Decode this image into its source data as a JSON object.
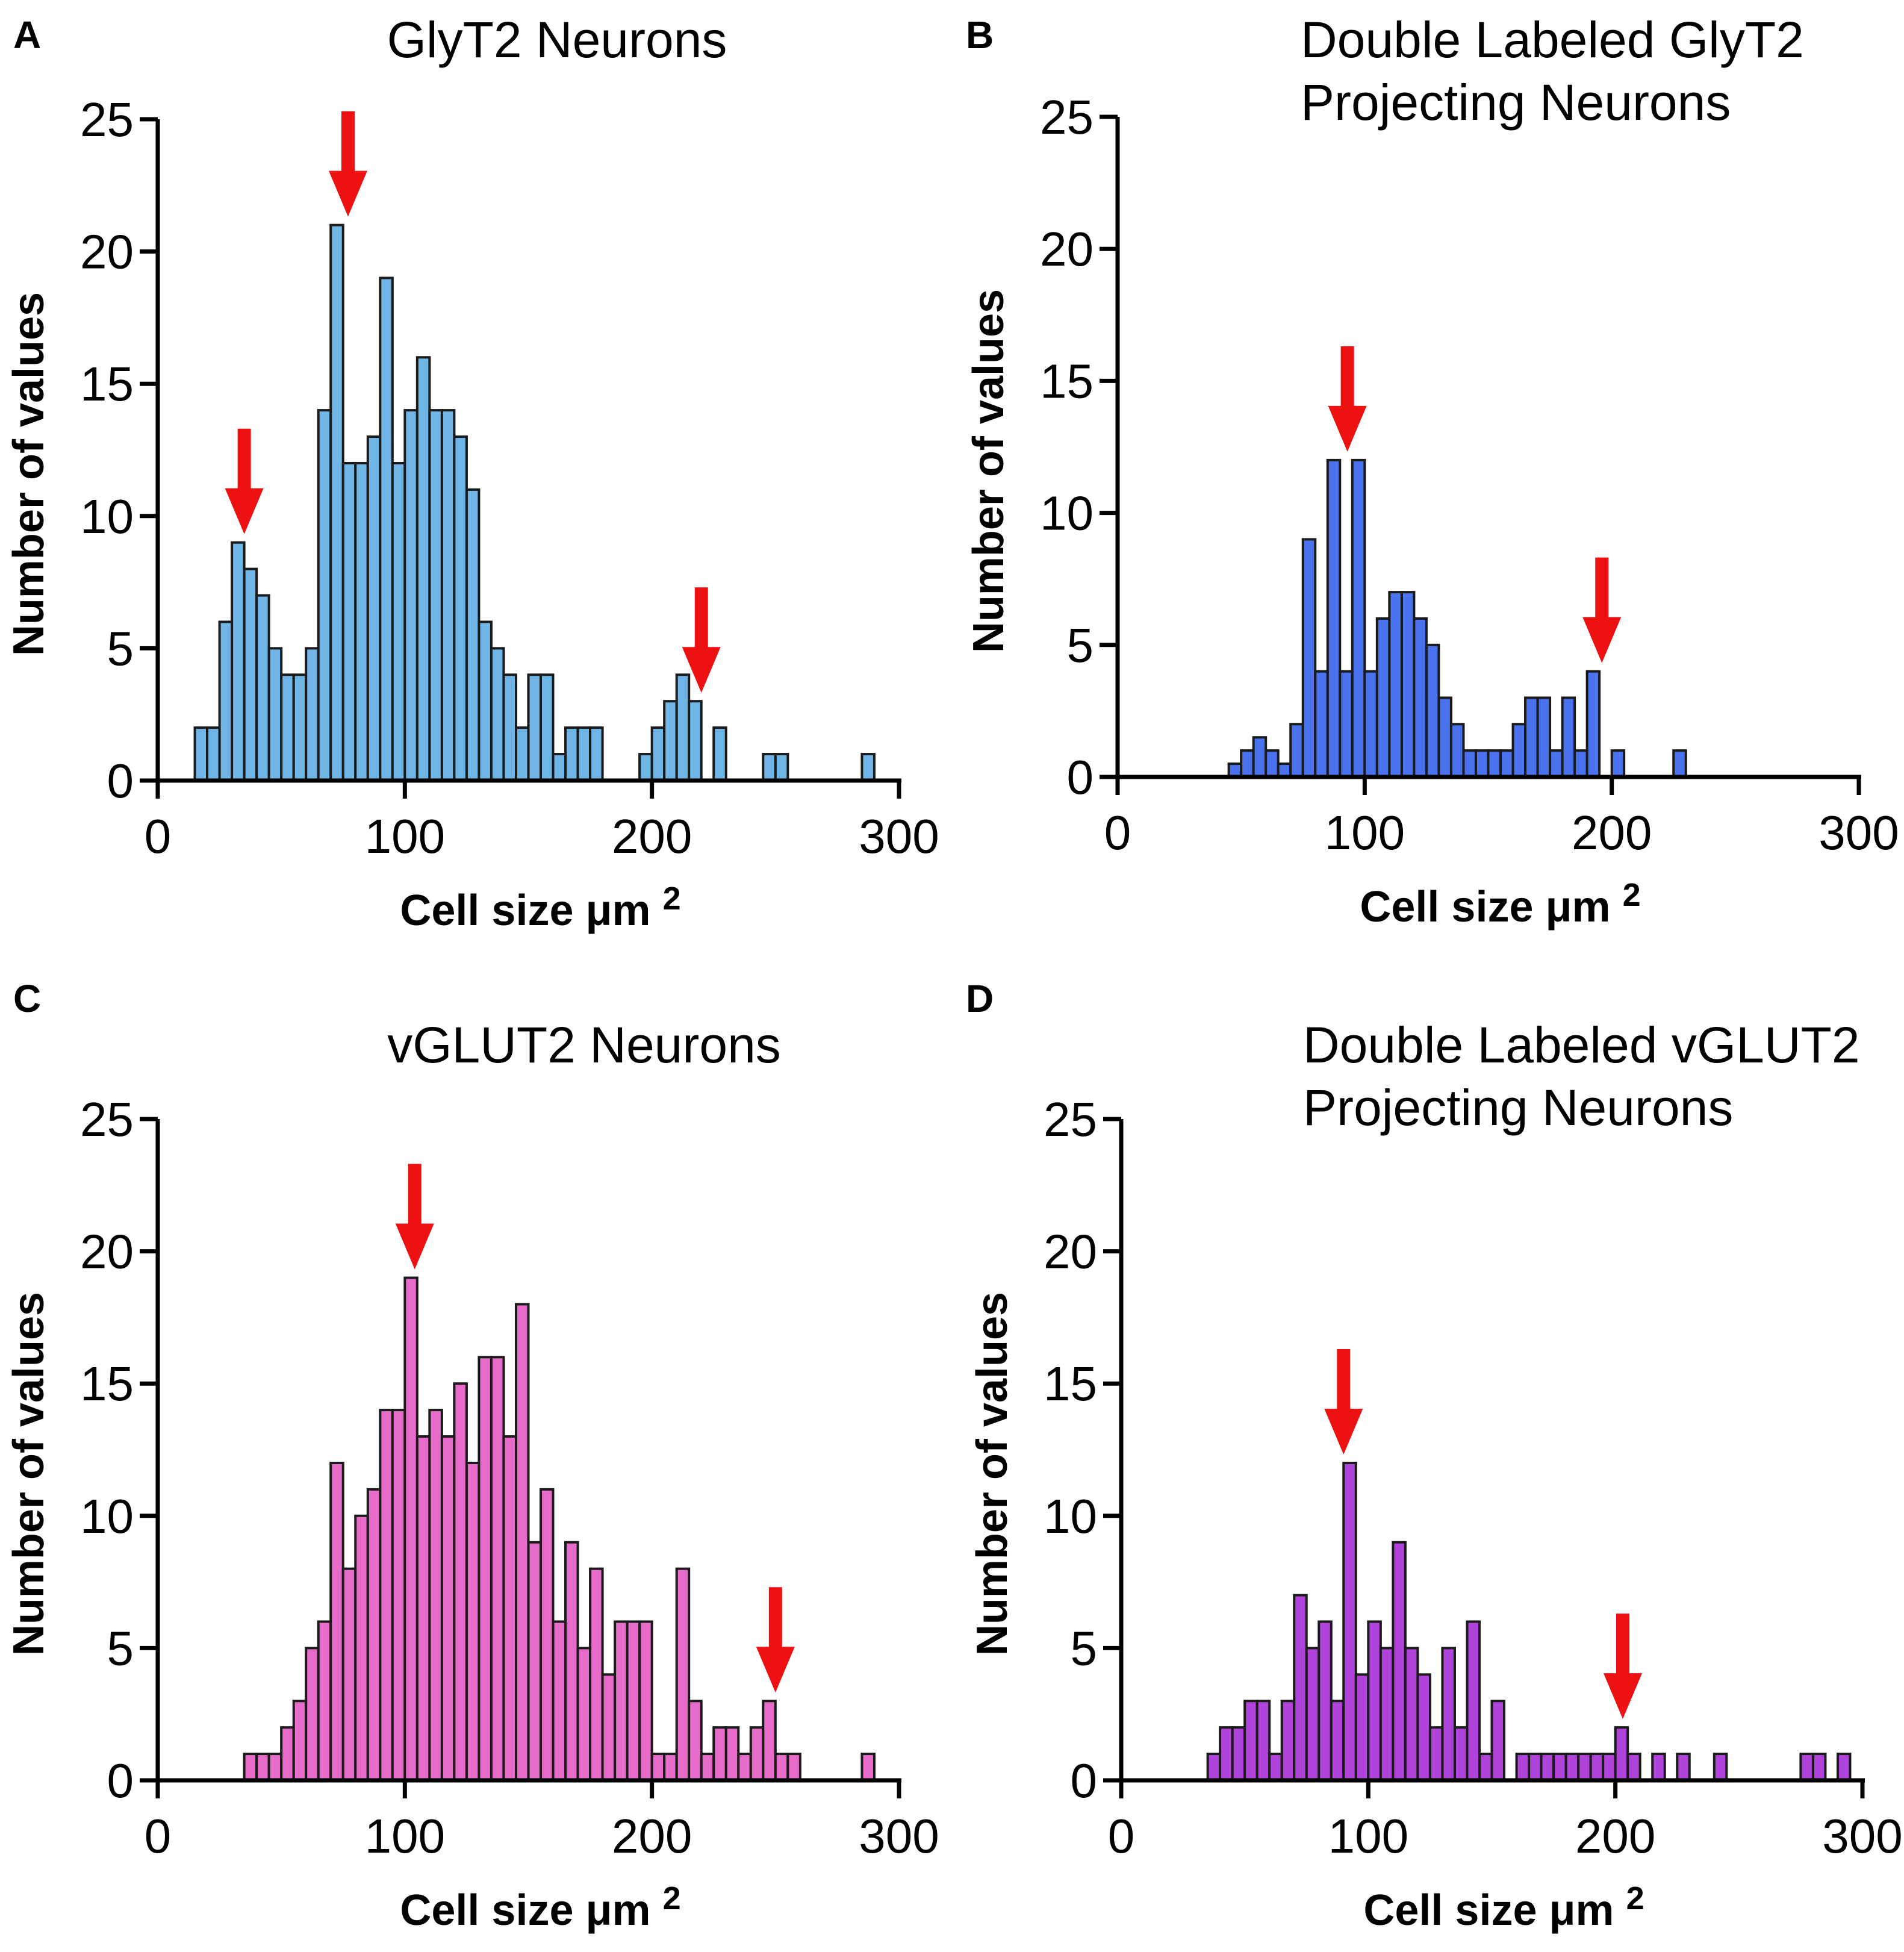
{
  "chart_data": [
    {
      "panel": "A",
      "type": "bar",
      "title": [
        "GlyT2 Neurons"
      ],
      "xlabel": "Cell size μm",
      "xlabel_sup": "2",
      "ylabel": "Number of values",
      "xlim": [
        0,
        300
      ],
      "ylim": [
        0,
        25
      ],
      "xticks": [
        0,
        100,
        200,
        300
      ],
      "yticks": [
        0,
        5,
        10,
        15,
        20,
        25
      ],
      "color": "#6FB5E6",
      "bin_width": 5,
      "bins": [
        {
          "x": 15,
          "y": 2
        },
        {
          "x": 20,
          "y": 2
        },
        {
          "x": 25,
          "y": 6
        },
        {
          "x": 30,
          "y": 9
        },
        {
          "x": 35,
          "y": 8
        },
        {
          "x": 40,
          "y": 7
        },
        {
          "x": 45,
          "y": 5
        },
        {
          "x": 50,
          "y": 4
        },
        {
          "x": 55,
          "y": 4
        },
        {
          "x": 60,
          "y": 5
        },
        {
          "x": 65,
          "y": 14
        },
        {
          "x": 70,
          "y": 21
        },
        {
          "x": 75,
          "y": 12
        },
        {
          "x": 80,
          "y": 12
        },
        {
          "x": 85,
          "y": 13
        },
        {
          "x": 90,
          "y": 19
        },
        {
          "x": 95,
          "y": 12
        },
        {
          "x": 100,
          "y": 14
        },
        {
          "x": 105,
          "y": 16
        },
        {
          "x": 110,
          "y": 14
        },
        {
          "x": 115,
          "y": 14
        },
        {
          "x": 120,
          "y": 13
        },
        {
          "x": 125,
          "y": 11
        },
        {
          "x": 130,
          "y": 6
        },
        {
          "x": 135,
          "y": 5
        },
        {
          "x": 140,
          "y": 4
        },
        {
          "x": 145,
          "y": 2
        },
        {
          "x": 150,
          "y": 4
        },
        {
          "x": 155,
          "y": 4
        },
        {
          "x": 160,
          "y": 1
        },
        {
          "x": 165,
          "y": 2
        },
        {
          "x": 170,
          "y": 2
        },
        {
          "x": 175,
          "y": 2
        },
        {
          "x": 195,
          "y": 1
        },
        {
          "x": 200,
          "y": 2
        },
        {
          "x": 205,
          "y": 3
        },
        {
          "x": 210,
          "y": 4
        },
        {
          "x": 215,
          "y": 3
        },
        {
          "x": 225,
          "y": 2
        },
        {
          "x": 245,
          "y": 1
        },
        {
          "x": 250,
          "y": 1
        },
        {
          "x": 285,
          "y": 1
        }
      ],
      "arrows": [
        35,
        77,
        220
      ]
    },
    {
      "panel": "B",
      "type": "bar",
      "title": [
        "Double Labeled GlyT2",
        "Projecting Neurons"
      ],
      "xlabel": "Cell size μm",
      "xlabel_sup": "2",
      "ylabel": "Number of values",
      "xlim": [
        0,
        300
      ],
      "ylim": [
        0,
        25
      ],
      "xticks": [
        0,
        100,
        200,
        300
      ],
      "yticks": [
        0,
        5,
        10,
        15,
        20,
        25
      ],
      "color": "#4A72EE",
      "bin_width": 5,
      "bins": [
        {
          "x": 45,
          "y": 0.5
        },
        {
          "x": 50,
          "y": 1
        },
        {
          "x": 55,
          "y": 1.5
        },
        {
          "x": 60,
          "y": 1
        },
        {
          "x": 65,
          "y": 0.5
        },
        {
          "x": 70,
          "y": 2
        },
        {
          "x": 75,
          "y": 9
        },
        {
          "x": 80,
          "y": 4
        },
        {
          "x": 85,
          "y": 12
        },
        {
          "x": 90,
          "y": 4
        },
        {
          "x": 95,
          "y": 12
        },
        {
          "x": 100,
          "y": 4
        },
        {
          "x": 105,
          "y": 6
        },
        {
          "x": 110,
          "y": 7
        },
        {
          "x": 115,
          "y": 7
        },
        {
          "x": 120,
          "y": 6
        },
        {
          "x": 125,
          "y": 5
        },
        {
          "x": 130,
          "y": 3
        },
        {
          "x": 135,
          "y": 2
        },
        {
          "x": 140,
          "y": 1
        },
        {
          "x": 145,
          "y": 1
        },
        {
          "x": 150,
          "y": 1
        },
        {
          "x": 155,
          "y": 1
        },
        {
          "x": 160,
          "y": 2
        },
        {
          "x": 165,
          "y": 3
        },
        {
          "x": 170,
          "y": 3
        },
        {
          "x": 175,
          "y": 1
        },
        {
          "x": 180,
          "y": 3
        },
        {
          "x": 185,
          "y": 1
        },
        {
          "x": 190,
          "y": 4
        },
        {
          "x": 200,
          "y": 1
        },
        {
          "x": 225,
          "y": 1
        }
      ],
      "arrows": [
        93,
        196
      ]
    },
    {
      "panel": "C",
      "type": "bar",
      "title": [
        "vGLUT2 Neurons"
      ],
      "xlabel": "Cell size μm",
      "xlabel_sup": "2",
      "ylabel": "Number of values",
      "xlim": [
        0,
        300
      ],
      "ylim": [
        0,
        25
      ],
      "xticks": [
        0,
        100,
        200,
        300
      ],
      "yticks": [
        0,
        5,
        10,
        15,
        20,
        25
      ],
      "color": "#E76BC8",
      "bin_width": 5,
      "bins": [
        {
          "x": 35,
          "y": 1
        },
        {
          "x": 40,
          "y": 1
        },
        {
          "x": 45,
          "y": 1
        },
        {
          "x": 50,
          "y": 2
        },
        {
          "x": 55,
          "y": 3
        },
        {
          "x": 60,
          "y": 5
        },
        {
          "x": 65,
          "y": 6
        },
        {
          "x": 70,
          "y": 12
        },
        {
          "x": 75,
          "y": 8
        },
        {
          "x": 80,
          "y": 10
        },
        {
          "x": 85,
          "y": 11
        },
        {
          "x": 90,
          "y": 14
        },
        {
          "x": 95,
          "y": 14
        },
        {
          "x": 100,
          "y": 19
        },
        {
          "x": 105,
          "y": 13
        },
        {
          "x": 110,
          "y": 14
        },
        {
          "x": 115,
          "y": 13
        },
        {
          "x": 120,
          "y": 15
        },
        {
          "x": 125,
          "y": 12
        },
        {
          "x": 130,
          "y": 16
        },
        {
          "x": 135,
          "y": 16
        },
        {
          "x": 140,
          "y": 13
        },
        {
          "x": 145,
          "y": 18
        },
        {
          "x": 150,
          "y": 9
        },
        {
          "x": 155,
          "y": 11
        },
        {
          "x": 160,
          "y": 6
        },
        {
          "x": 165,
          "y": 9
        },
        {
          "x": 170,
          "y": 5
        },
        {
          "x": 175,
          "y": 8
        },
        {
          "x": 180,
          "y": 4
        },
        {
          "x": 185,
          "y": 6
        },
        {
          "x": 190,
          "y": 6
        },
        {
          "x": 195,
          "y": 6
        },
        {
          "x": 200,
          "y": 1
        },
        {
          "x": 205,
          "y": 1
        },
        {
          "x": 210,
          "y": 8
        },
        {
          "x": 215,
          "y": 3
        },
        {
          "x": 220,
          "y": 1
        },
        {
          "x": 225,
          "y": 2
        },
        {
          "x": 230,
          "y": 2
        },
        {
          "x": 235,
          "y": 1
        },
        {
          "x": 240,
          "y": 2
        },
        {
          "x": 245,
          "y": 3
        },
        {
          "x": 250,
          "y": 1
        },
        {
          "x": 255,
          "y": 1
        },
        {
          "x": 285,
          "y": 1
        }
      ],
      "arrows": [
        104,
        250
      ]
    },
    {
      "panel": "D",
      "type": "bar",
      "title": [
        "Double Labeled vGLUT2",
        "Projecting Neurons"
      ],
      "xlabel": "Cell size μm",
      "xlabel_sup": "2",
      "ylabel": "Number of values",
      "xlim": [
        0,
        300
      ],
      "ylim": [
        0,
        25
      ],
      "xticks": [
        0,
        100,
        200,
        300
      ],
      "yticks": [
        0,
        5,
        10,
        15,
        20,
        25
      ],
      "color": "#B043DB",
      "bin_width": 5,
      "bins": [
        {
          "x": 35,
          "y": 1
        },
        {
          "x": 40,
          "y": 2
        },
        {
          "x": 45,
          "y": 2
        },
        {
          "x": 50,
          "y": 3
        },
        {
          "x": 55,
          "y": 3
        },
        {
          "x": 60,
          "y": 1
        },
        {
          "x": 65,
          "y": 3
        },
        {
          "x": 70,
          "y": 7
        },
        {
          "x": 75,
          "y": 5
        },
        {
          "x": 80,
          "y": 6
        },
        {
          "x": 85,
          "y": 3
        },
        {
          "x": 90,
          "y": 12
        },
        {
          "x": 95,
          "y": 4
        },
        {
          "x": 100,
          "y": 6
        },
        {
          "x": 105,
          "y": 5
        },
        {
          "x": 110,
          "y": 9
        },
        {
          "x": 115,
          "y": 5
        },
        {
          "x": 120,
          "y": 4
        },
        {
          "x": 125,
          "y": 2
        },
        {
          "x": 130,
          "y": 5
        },
        {
          "x": 135,
          "y": 2
        },
        {
          "x": 140,
          "y": 6
        },
        {
          "x": 145,
          "y": 1
        },
        {
          "x": 150,
          "y": 3
        },
        {
          "x": 160,
          "y": 1
        },
        {
          "x": 165,
          "y": 1
        },
        {
          "x": 170,
          "y": 1
        },
        {
          "x": 175,
          "y": 1
        },
        {
          "x": 180,
          "y": 1
        },
        {
          "x": 185,
          "y": 1
        },
        {
          "x": 190,
          "y": 1
        },
        {
          "x": 195,
          "y": 1
        },
        {
          "x": 200,
          "y": 2
        },
        {
          "x": 205,
          "y": 1
        },
        {
          "x": 215,
          "y": 1
        },
        {
          "x": 225,
          "y": 1
        },
        {
          "x": 240,
          "y": 1
        },
        {
          "x": 275,
          "y": 1
        },
        {
          "x": 280,
          "y": 1
        },
        {
          "x": 290,
          "y": 1
        }
      ],
      "arrows": [
        90,
        203
      ]
    }
  ]
}
